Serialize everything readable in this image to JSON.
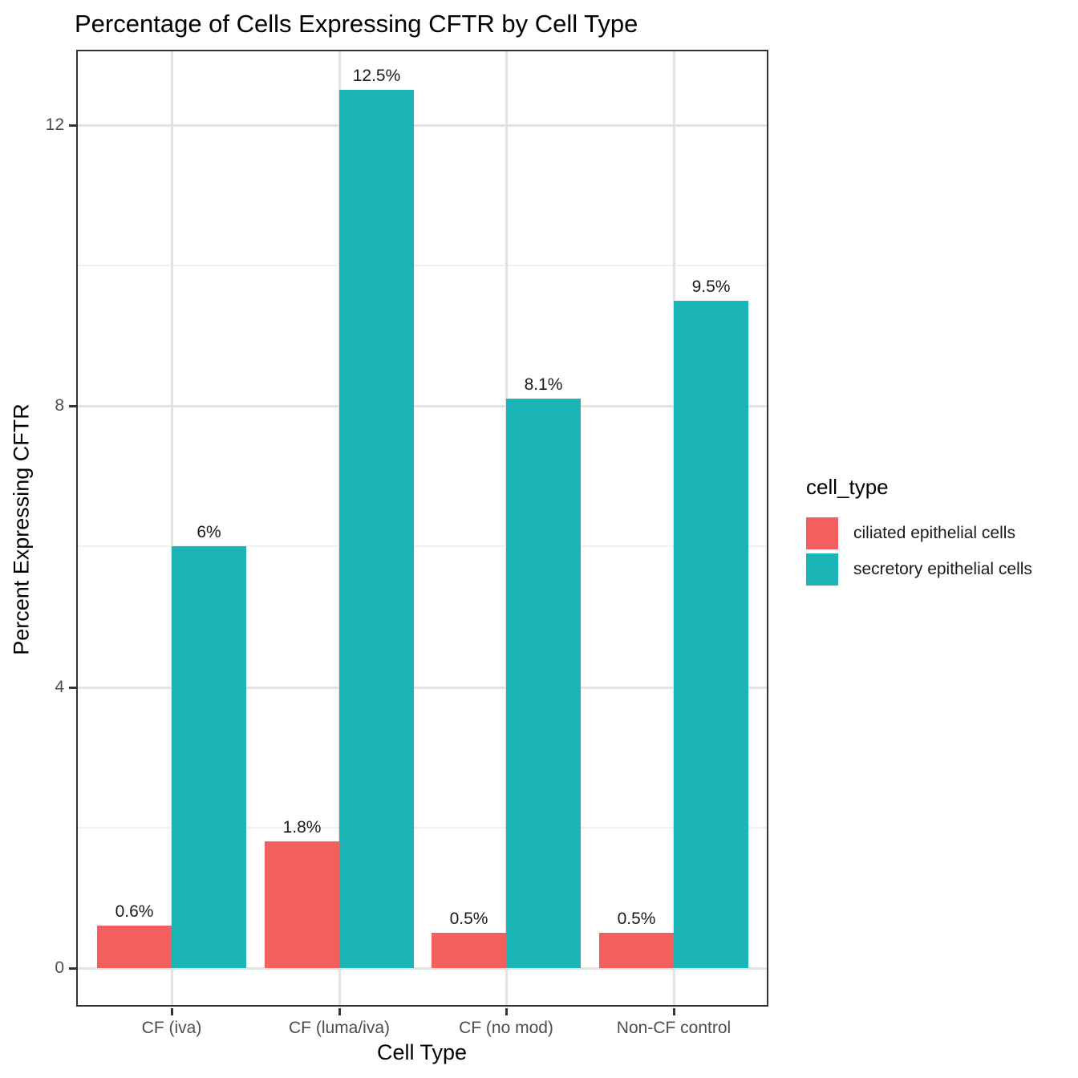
{
  "chart_data": {
    "type": "bar",
    "title": "Percentage of Cells Expressing CFTR by Cell Type",
    "xlabel": "Cell Type",
    "ylabel": "Percent Expressing CFTR",
    "categories": [
      "CF (iva)",
      "CF (luma/iva)",
      "CF (no mod)",
      "Non-CF control"
    ],
    "series": [
      {
        "name": "ciliated epithelial cells",
        "color": "#F25F5E",
        "values": [
          0.6,
          1.8,
          0.5,
          0.5
        ],
        "value_labels": [
          "0.6%",
          "1.8%",
          "0.5%",
          "0.5%"
        ]
      },
      {
        "name": "secretory epithelial cells",
        "color": "#1BB5B8",
        "values": [
          6,
          12.5,
          8.1,
          9.5
        ],
        "value_labels": [
          "6%",
          "12.5%",
          "8.1%",
          "9.5%"
        ]
      }
    ],
    "y_ticks": [
      0,
      4,
      8,
      12
    ],
    "y_minor_ticks": [
      2,
      6,
      10
    ],
    "ylim": [
      -0.5,
      13.05
    ],
    "grid": true,
    "legend_title": "cell_type",
    "legend_position": "right",
    "colors": {
      "panel_border": "#333333",
      "grid_major": "#e3e3e3",
      "grid_minor": "#f0f0f0",
      "tick_label": "#4d4d4d",
      "text": "#000000",
      "background": "#ffffff"
    }
  }
}
